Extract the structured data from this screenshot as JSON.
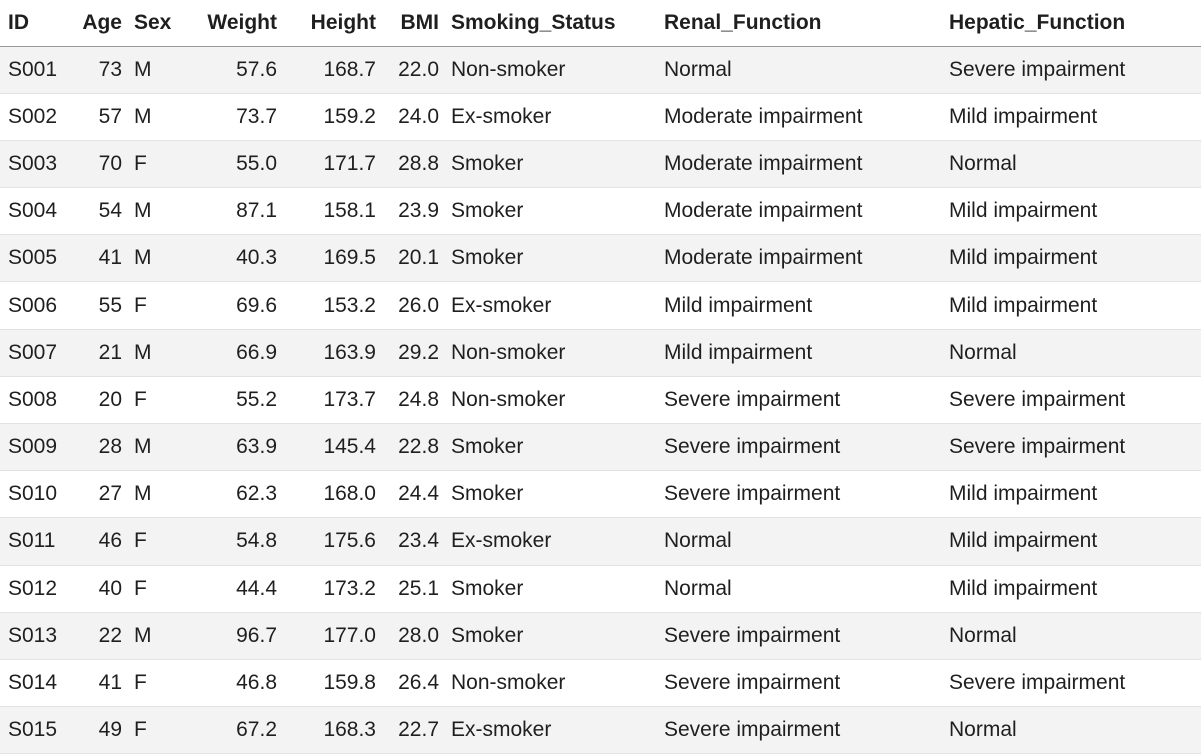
{
  "table": {
    "headers": [
      "ID",
      "Age",
      "Sex",
      "Weight",
      "Height",
      "BMI",
      "Smoking_Status",
      "Renal_Function",
      "Hepatic_Function"
    ],
    "rows": [
      [
        "S001",
        "73",
        "M",
        "57.6",
        "168.7",
        "22.0",
        "Non-smoker",
        "Normal",
        "Severe impairment"
      ],
      [
        "S002",
        "57",
        "M",
        "73.7",
        "159.2",
        "24.0",
        "Ex-smoker",
        "Moderate impairment",
        "Mild impairment"
      ],
      [
        "S003",
        "70",
        "F",
        "55.0",
        "171.7",
        "28.8",
        "Smoker",
        "Moderate impairment",
        "Normal"
      ],
      [
        "S004",
        "54",
        "M",
        "87.1",
        "158.1",
        "23.9",
        "Smoker",
        "Moderate impairment",
        "Mild impairment"
      ],
      [
        "S005",
        "41",
        "M",
        "40.3",
        "169.5",
        "20.1",
        "Smoker",
        "Moderate impairment",
        "Mild impairment"
      ],
      [
        "S006",
        "55",
        "F",
        "69.6",
        "153.2",
        "26.0",
        "Ex-smoker",
        "Mild impairment",
        "Mild impairment"
      ],
      [
        "S007",
        "21",
        "M",
        "66.9",
        "163.9",
        "29.2",
        "Non-smoker",
        "Mild impairment",
        "Normal"
      ],
      [
        "S008",
        "20",
        "F",
        "55.2",
        "173.7",
        "24.8",
        "Non-smoker",
        "Severe impairment",
        "Severe impairment"
      ],
      [
        "S009",
        "28",
        "M",
        "63.9",
        "145.4",
        "22.8",
        "Smoker",
        "Severe impairment",
        "Severe impairment"
      ],
      [
        "S010",
        "27",
        "M",
        "62.3",
        "168.0",
        "24.4",
        "Smoker",
        "Severe impairment",
        "Mild impairment"
      ],
      [
        "S011",
        "46",
        "F",
        "54.8",
        "175.6",
        "23.4",
        "Ex-smoker",
        "Normal",
        "Mild impairment"
      ],
      [
        "S012",
        "40",
        "F",
        "44.4",
        "173.2",
        "25.1",
        "Smoker",
        "Normal",
        "Mild impairment"
      ],
      [
        "S013",
        "22",
        "M",
        "96.7",
        "177.0",
        "28.0",
        "Smoker",
        "Severe impairment",
        "Normal"
      ],
      [
        "S014",
        "41",
        "F",
        "46.8",
        "159.8",
        "26.4",
        "Non-smoker",
        "Severe impairment",
        "Severe impairment"
      ],
      [
        "S015",
        "49",
        "F",
        "67.2",
        "168.3",
        "22.7",
        "Ex-smoker",
        "Severe impairment",
        "Normal"
      ]
    ]
  },
  "colors": {
    "stripe": "#f3f3f3",
    "background": "#ffffff",
    "header_rule": "#9a9a9a",
    "row_rule": "#e2e2e2",
    "text": "#1f1f1f"
  }
}
